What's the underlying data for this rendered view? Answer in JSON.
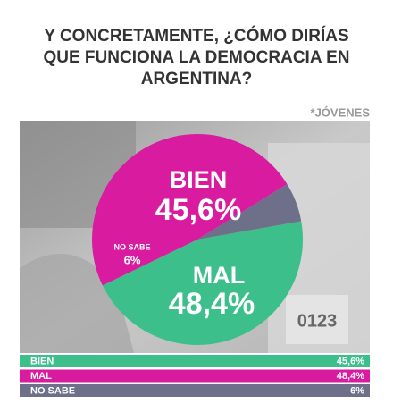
{
  "chart_data": {
    "type": "pie",
    "title_lines": [
      "Y CONCRETAMENTE, ¿CÓMO DIRÍAS",
      "QUE FUNCIONA LA DEMOCRACIA EN",
      "ARGENTINA?"
    ],
    "subtitle": "*JÓVENES",
    "categories": [
      "BIEN",
      "MAL",
      "NO SABE"
    ],
    "values": [
      45.6,
      48.4,
      6
    ],
    "value_labels": [
      "45,6%",
      "48,4%",
      "6%"
    ],
    "colors": [
      "#3dbf8c",
      "#d81b9f",
      "#6d7088"
    ]
  }
}
